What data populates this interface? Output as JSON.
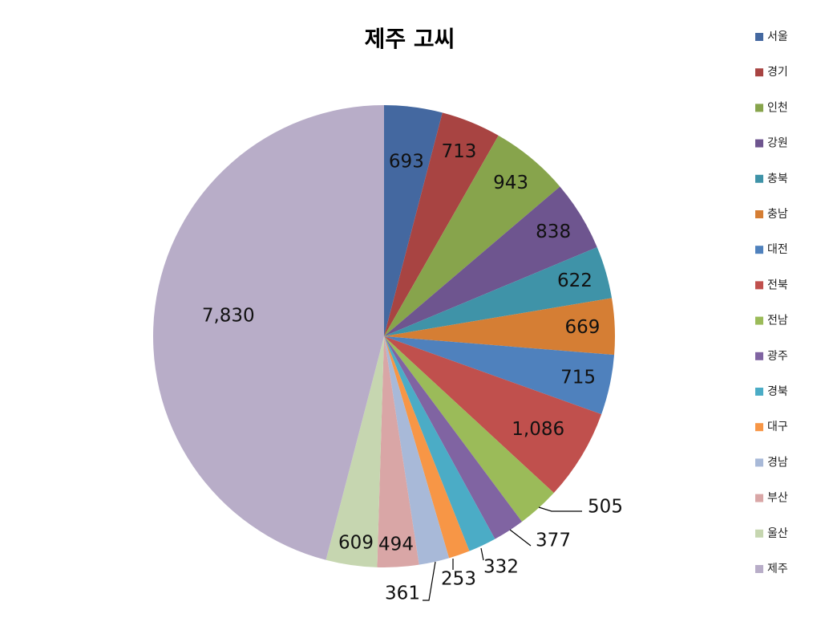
{
  "chart_data": {
    "type": "pie",
    "title": "제주 고씨",
    "categories": [
      "서울",
      "경기",
      "인천",
      "강원",
      "충북",
      "충남",
      "대전",
      "전북",
      "전남",
      "광주",
      "경북",
      "대구",
      "경남",
      "부산",
      "울산",
      "제주"
    ],
    "values": [
      693,
      713,
      943,
      838,
      622,
      669,
      715,
      1086,
      505,
      377,
      332,
      253,
      361,
      494,
      609,
      7830
    ],
    "value_labels": [
      "693",
      "713",
      "943",
      "838",
      "622",
      "669",
      "715",
      "1,086",
      "505",
      "377",
      "332",
      "253",
      "361",
      "494",
      "609",
      "7,830"
    ],
    "colors": [
      "#4468A0",
      "#A84442",
      "#87A44C",
      "#6E558F",
      "#3F93A8",
      "#D57E34",
      "#4F81BD",
      "#C0504D",
      "#9BBB59",
      "#8064A2",
      "#4BACC6",
      "#F79646",
      "#A8B9D8",
      "#D9A6A6",
      "#C6D6B0",
      "#B8ADC8"
    ],
    "legend_position": "right"
  }
}
